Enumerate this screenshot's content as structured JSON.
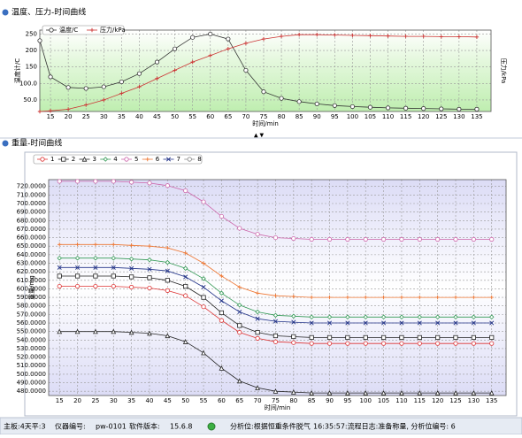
{
  "chart_data": [
    {
      "type": "line",
      "title": "温度、压力-时间曲线",
      "xlabel": "时间/min",
      "ylabel": "温度计/C",
      "y2label": "压力/kPa",
      "x": [
        12,
        15,
        20,
        25,
        30,
        35,
        40,
        45,
        50,
        55,
        60,
        65,
        70,
        75,
        80,
        85,
        90,
        95,
        100,
        105,
        110,
        115,
        120,
        125,
        130,
        135
      ],
      "xlim": [
        12,
        139
      ],
      "xticks": [
        15,
        20,
        25,
        30,
        35,
        40,
        45,
        50,
        55,
        60,
        65,
        70,
        75,
        80,
        85,
        90,
        95,
        100,
        105,
        110,
        115,
        120,
        125,
        130,
        135
      ],
      "ylim": [
        15,
        262
      ],
      "yticks": [
        {
          "value": 50,
          "label": "50.0"
        },
        {
          "value": 100,
          "label": "100.0"
        },
        150,
        200,
        250
      ],
      "grid": true,
      "series": [
        {
          "name": "温度/C",
          "color": "#333333",
          "marker": "circle",
          "values": [
            230,
            120,
            88,
            85,
            90,
            105,
            130,
            165,
            205,
            240,
            250,
            235,
            140,
            75,
            55,
            45,
            38,
            33,
            30,
            28,
            26,
            25,
            24,
            23,
            22,
            22
          ]
        },
        {
          "name": "压力/kPa",
          "color": "#cc3333",
          "marker": "cross",
          "values": [
            15,
            17,
            22,
            35,
            50,
            70,
            90,
            115,
            140,
            165,
            185,
            205,
            222,
            235,
            243,
            248,
            248,
            247,
            246,
            245,
            244,
            243,
            243,
            242,
            242,
            241
          ]
        }
      ]
    },
    {
      "type": "line",
      "title": "重量-时间曲线",
      "xlabel": "时间/min",
      "ylabel": "重量/mg",
      "x": [
        15,
        20,
        25,
        30,
        35,
        40,
        45,
        50,
        55,
        60,
        65,
        70,
        75,
        80,
        85,
        90,
        95,
        100,
        105,
        110,
        115,
        120,
        125,
        130,
        135
      ],
      "xlim": [
        12,
        139
      ],
      "xticks": [
        15,
        20,
        25,
        30,
        35,
        40,
        45,
        50,
        55,
        60,
        65,
        70,
        75,
        80,
        85,
        90,
        95,
        100,
        105,
        110,
        115,
        120,
        125,
        130,
        135
      ],
      "ylim": [
        475,
        728
      ],
      "yticks": [
        {
          "value": 480,
          "label": "480.0000"
        },
        {
          "value": 490,
          "label": "490.0000"
        },
        {
          "value": 500,
          "label": "500.0000"
        },
        {
          "value": 510,
          "label": "510.0000"
        },
        {
          "value": 520,
          "label": "520.0000"
        },
        {
          "value": 530,
          "label": "530.0000"
        },
        {
          "value": 540,
          "label": "540.0000"
        },
        {
          "value": 550,
          "label": "550.0000"
        },
        {
          "value": 560,
          "label": "560.0000"
        },
        {
          "value": 570,
          "label": "570.0000"
        },
        {
          "value": 580,
          "label": "580.0000"
        },
        {
          "value": 590,
          "label": "590.0000"
        },
        {
          "value": 600,
          "label": "600.0000"
        },
        {
          "value": 610,
          "label": "610.0000"
        },
        {
          "value": 620,
          "label": "620.0000"
        },
        {
          "value": 630,
          "label": "630.0000"
        },
        {
          "value": 640,
          "label": "640.0000"
        },
        {
          "value": 650,
          "label": "650.0000"
        },
        {
          "value": 660,
          "label": "660.0000"
        },
        {
          "value": 670,
          "label": "670.0000"
        },
        {
          "value": 680,
          "label": "680.0000"
        },
        {
          "value": 690,
          "label": "690.0000"
        },
        {
          "value": 700,
          "label": "700.0000"
        },
        {
          "value": 710,
          "label": "710.0000"
        },
        {
          "value": 720,
          "label": "720.0000"
        }
      ],
      "grid": true,
      "series": [
        {
          "name": "1",
          "color": "#dd3333",
          "marker": "circle",
          "values": [
            603,
            603,
            603,
            603,
            602,
            601,
            598,
            592,
            579,
            563,
            549,
            542,
            538,
            537,
            536,
            536,
            536,
            536,
            536,
            536,
            536,
            536,
            536,
            536,
            536
          ]
        },
        {
          "name": "2",
          "color": "#222222",
          "marker": "square",
          "values": [
            615,
            615,
            615,
            615,
            614,
            613,
            610,
            603,
            590,
            572,
            557,
            549,
            545,
            544,
            543,
            543,
            543,
            543,
            543,
            543,
            543,
            543,
            543,
            543,
            543
          ]
        },
        {
          "name": "3",
          "color": "#222222",
          "marker": "triangle",
          "values": [
            550,
            550,
            550,
            550,
            549,
            548,
            545,
            538,
            525,
            507,
            492,
            484,
            480,
            479,
            478,
            478,
            478,
            478,
            478,
            478,
            478,
            478,
            478,
            478,
            478
          ]
        },
        {
          "name": "4",
          "color": "#339955",
          "marker": "diamond",
          "values": [
            636,
            636,
            636,
            636,
            635,
            634,
            631,
            624,
            612,
            595,
            581,
            573,
            569,
            568,
            567,
            567,
            567,
            567,
            567,
            567,
            567,
            567,
            567,
            567,
            567
          ]
        },
        {
          "name": "5",
          "color": "#cc66aa",
          "marker": "circle",
          "values": [
            726,
            726,
            726,
            726,
            725,
            724,
            721,
            715,
            702,
            685,
            671,
            664,
            660,
            659,
            658,
            658,
            658,
            658,
            658,
            658,
            658,
            658,
            658,
            658,
            658
          ]
        },
        {
          "name": "6",
          "color": "#ee7733",
          "marker": "cross",
          "values": [
            652,
            652,
            652,
            652,
            651,
            650,
            648,
            642,
            630,
            615,
            602,
            595,
            592,
            591,
            590,
            590,
            590,
            590,
            590,
            590,
            590,
            590,
            590,
            590,
            590
          ]
        },
        {
          "name": "7",
          "color": "#223388",
          "marker": "x",
          "values": [
            625,
            625,
            625,
            625,
            624,
            623,
            621,
            614,
            602,
            586,
            573,
            565,
            562,
            561,
            560,
            560,
            560,
            560,
            560,
            560,
            560,
            560,
            560,
            560,
            560
          ]
        },
        {
          "name": "8",
          "color": "#888888",
          "marker": "circle",
          "values": [
            null,
            null,
            null,
            null,
            null,
            null,
            null,
            null,
            null,
            null,
            null,
            null,
            null,
            null,
            null,
            null,
            null,
            null,
            null,
            null,
            null,
            null,
            null,
            null,
            null
          ]
        }
      ]
    }
  ],
  "status_bar": [
    "主板:4天平:3",
    "仪器编号:",
    "pw-0101",
    "软件版本:",
    "15.6.8",
    "分析位:根据恒重条件脱气",
    "16:35:57:流程日志:准备称量, 分析位编号: 6"
  ]
}
